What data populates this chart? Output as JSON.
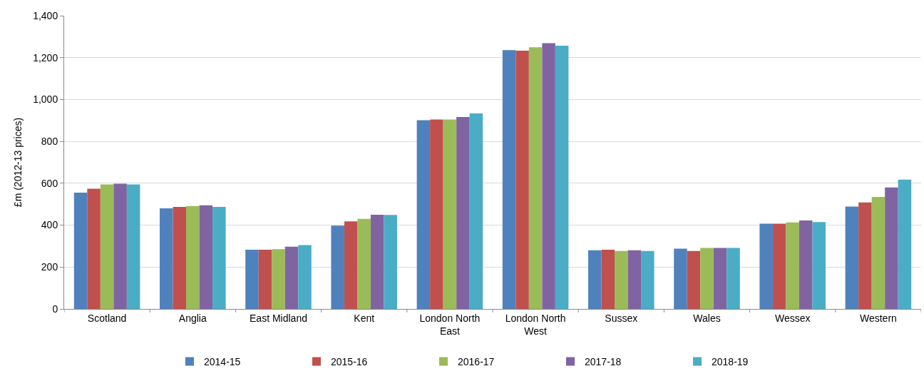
{
  "chart_data": {
    "type": "bar",
    "ylabel": "£m (2012-13 prices)",
    "categories": [
      "Scotland",
      "Anglia",
      "East Midland",
      "Kent",
      "London North East",
      "London North West",
      "Sussex",
      "Wales",
      "Wessex",
      "Western"
    ],
    "series": [
      {
        "name": "2014-15",
        "color": "#4f81bd",
        "values": [
          555,
          480,
          283,
          398,
          901,
          1236,
          280,
          288,
          407,
          489
        ]
      },
      {
        "name": "2015-16",
        "color": "#c0504d",
        "values": [
          574,
          487,
          283,
          418,
          904,
          1233,
          283,
          277,
          407,
          508
        ]
      },
      {
        "name": "2016-17",
        "color": "#9bbb59",
        "values": [
          594,
          491,
          285,
          430,
          904,
          1249,
          277,
          291,
          413,
          535
        ]
      },
      {
        "name": "2017-18",
        "color": "#8064a2",
        "values": [
          598,
          495,
          297,
          450,
          916,
          1269,
          280,
          291,
          422,
          580
        ]
      },
      {
        "name": "2018-19",
        "color": "#4bacc6",
        "values": [
          594,
          487,
          305,
          449,
          933,
          1257,
          277,
          291,
          415,
          617
        ]
      }
    ],
    "ylim": [
      0,
      1400
    ],
    "yticks": [
      0,
      200,
      400,
      600,
      800,
      {
        "value": 1000,
        "label": "1,000"
      },
      {
        "value": 1200,
        "label": "1,200"
      },
      {
        "value": 1400,
        "label": "1,400"
      }
    ],
    "grid": "y",
    "legend": "bottom"
  }
}
